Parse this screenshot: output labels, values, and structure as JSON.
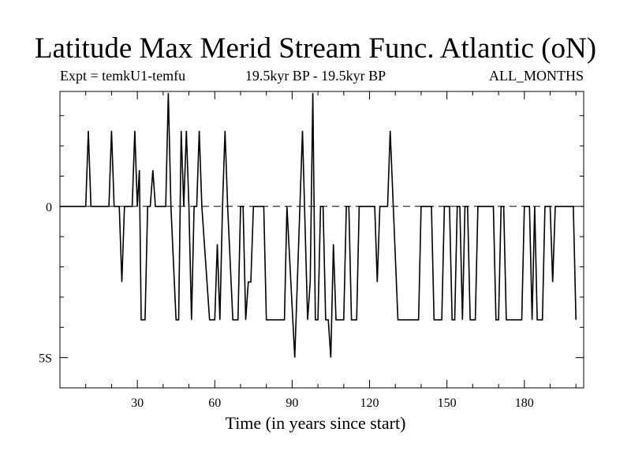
{
  "title": "Latitude Max Merid Stream Func. Atlantic (oN)",
  "subtitle_left": "Expt = temkU1-temfu",
  "subtitle_center": "19.5kyr BP - 19.5kyr BP",
  "subtitle_right": "ALL_MONTHS",
  "chart_data": {
    "type": "line",
    "title": "Latitude Max Merid Stream Func. Atlantic (oN)",
    "xlabel": "Time (in years since start)",
    "ylabel": "",
    "xlim": [
      0,
      203
    ],
    "ylim": [
      -6.0,
      3.8
    ],
    "x_ticks": [
      {
        "value": 30,
        "label": "30"
      },
      {
        "value": 60,
        "label": "60"
      },
      {
        "value": 90,
        "label": "90"
      },
      {
        "value": 120,
        "label": "120"
      },
      {
        "value": 150,
        "label": "150"
      },
      {
        "value": 180,
        "label": "180"
      }
    ],
    "y_ticks": [
      {
        "value": 0,
        "label": "0"
      },
      {
        "value": -5,
        "label": "5S"
      }
    ],
    "zero_line": true,
    "grid": false,
    "series": [
      {
        "points": [
          [
            0,
            0
          ],
          [
            10,
            0
          ],
          [
            11,
            2.5
          ],
          [
            12,
            0
          ],
          [
            19,
            0
          ],
          [
            20,
            2.5
          ],
          [
            21,
            0
          ],
          [
            23,
            0
          ],
          [
            24,
            -2.5
          ],
          [
            25,
            0
          ],
          [
            28,
            0
          ],
          [
            29,
            2.5
          ],
          [
            30,
            0
          ],
          [
            30.8,
            1.2
          ],
          [
            31.5,
            -3.75
          ],
          [
            33,
            -3.75
          ],
          [
            34,
            0
          ],
          [
            35,
            0
          ],
          [
            36,
            1.2
          ],
          [
            37,
            0
          ],
          [
            41,
            0
          ],
          [
            42,
            3.75
          ],
          [
            43,
            0
          ],
          [
            45,
            -3.75
          ],
          [
            46,
            -3.75
          ],
          [
            47,
            2.5
          ],
          [
            48,
            0
          ],
          [
            49,
            2.5
          ],
          [
            50,
            0
          ],
          [
            51,
            -3.75
          ],
          [
            52,
            0
          ],
          [
            53,
            0
          ],
          [
            54,
            2.5
          ],
          [
            55,
            0
          ],
          [
            58,
            -3.75
          ],
          [
            60,
            -3.75
          ],
          [
            61,
            -1.25
          ],
          [
            62,
            -3.75
          ],
          [
            63,
            0
          ],
          [
            64,
            2.5
          ],
          [
            65,
            0
          ],
          [
            67,
            -3.75
          ],
          [
            69,
            -3.75
          ],
          [
            70,
            0
          ],
          [
            71,
            0
          ],
          [
            72,
            -3.75
          ],
          [
            73,
            -2.5
          ],
          [
            74,
            -2.5
          ],
          [
            75,
            0
          ],
          [
            79,
            0
          ],
          [
            80,
            -3.75
          ],
          [
            87,
            -3.75
          ],
          [
            88,
            0
          ],
          [
            91,
            -5.0
          ],
          [
            94,
            2.5
          ],
          [
            96,
            -3.75
          ],
          [
            97,
            -2.5
          ],
          [
            98,
            3.75
          ],
          [
            99,
            -3.75
          ],
          [
            100,
            -3.75
          ],
          [
            101,
            0
          ],
          [
            102,
            0
          ],
          [
            103,
            -3.75
          ],
          [
            104,
            -3.75
          ],
          [
            105,
            -5.0
          ],
          [
            106,
            -1.25
          ],
          [
            107,
            -3.75
          ],
          [
            110,
            -3.75
          ],
          [
            111,
            0
          ],
          [
            112,
            0
          ],
          [
            113,
            -3.75
          ],
          [
            115,
            -3.75
          ],
          [
            116,
            0
          ],
          [
            122,
            0
          ],
          [
            123,
            -2.5
          ],
          [
            124,
            0
          ],
          [
            127,
            0
          ],
          [
            128,
            2.5
          ],
          [
            131,
            -3.75
          ],
          [
            139,
            -3.75
          ],
          [
            140,
            0
          ],
          [
            144,
            0
          ],
          [
            145,
            -3.75
          ],
          [
            148,
            -3.75
          ],
          [
            149,
            0
          ],
          [
            151,
            0
          ],
          [
            152,
            -3.75
          ],
          [
            153,
            -3.75
          ],
          [
            154,
            0
          ],
          [
            155,
            0
          ],
          [
            156,
            -3.75
          ],
          [
            157,
            0
          ],
          [
            158,
            0
          ],
          [
            159,
            -3.75
          ],
          [
            161,
            -3.75
          ],
          [
            162,
            0
          ],
          [
            168,
            0
          ],
          [
            169,
            -3.75
          ],
          [
            170,
            -3.75
          ],
          [
            171,
            0
          ],
          [
            172,
            0
          ],
          [
            173,
            -3.75
          ],
          [
            179,
            -3.75
          ],
          [
            180,
            0
          ],
          [
            182,
            0
          ],
          [
            183,
            -3.75
          ],
          [
            184,
            0
          ],
          [
            185,
            -3.75
          ],
          [
            187,
            -3.75
          ],
          [
            188,
            0
          ],
          [
            190,
            0
          ],
          [
            191,
            -2.5
          ],
          [
            192,
            0
          ],
          [
            199,
            0
          ],
          [
            200,
            -3.75
          ]
        ]
      }
    ]
  }
}
